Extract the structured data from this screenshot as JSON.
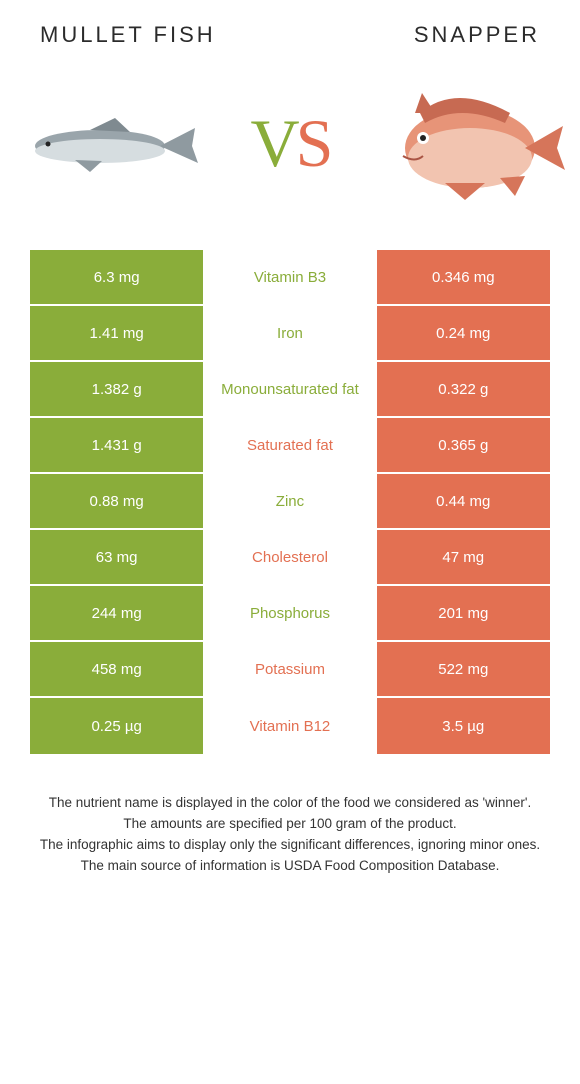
{
  "colors": {
    "left": "#8aad3a",
    "right": "#e37052"
  },
  "header": {
    "left_title": "Mullet fish",
    "right_title": "Snapper"
  },
  "vs": {
    "v": "V",
    "s": "S"
  },
  "rows": [
    {
      "left": "6.3 mg",
      "label": "Vitamin B3",
      "right": "0.346 mg",
      "winner": "left"
    },
    {
      "left": "1.41 mg",
      "label": "Iron",
      "right": "0.24 mg",
      "winner": "left"
    },
    {
      "left": "1.382 g",
      "label": "Monounsaturated fat",
      "right": "0.322 g",
      "winner": "left"
    },
    {
      "left": "1.431 g",
      "label": "Saturated fat",
      "right": "0.365 g",
      "winner": "right"
    },
    {
      "left": "0.88 mg",
      "label": "Zinc",
      "right": "0.44 mg",
      "winner": "left"
    },
    {
      "left": "63 mg",
      "label": "Cholesterol",
      "right": "47 mg",
      "winner": "right"
    },
    {
      "left": "244 mg",
      "label": "Phosphorus",
      "right": "201 mg",
      "winner": "left"
    },
    {
      "left": "458 mg",
      "label": "Potassium",
      "right": "522 mg",
      "winner": "right"
    },
    {
      "left": "0.25 µg",
      "label": "Vitamin B12",
      "right": "3.5 µg",
      "winner": "right"
    }
  ],
  "footer": {
    "l1": "The nutrient name is displayed in the color of the food we considered as 'winner'.",
    "l2": "The amounts are specified per 100 gram of the product.",
    "l3": "The infographic aims to display only the significant differences, ignoring minor ones.",
    "l4": "The main source of information is USDA Food Composition Database."
  }
}
